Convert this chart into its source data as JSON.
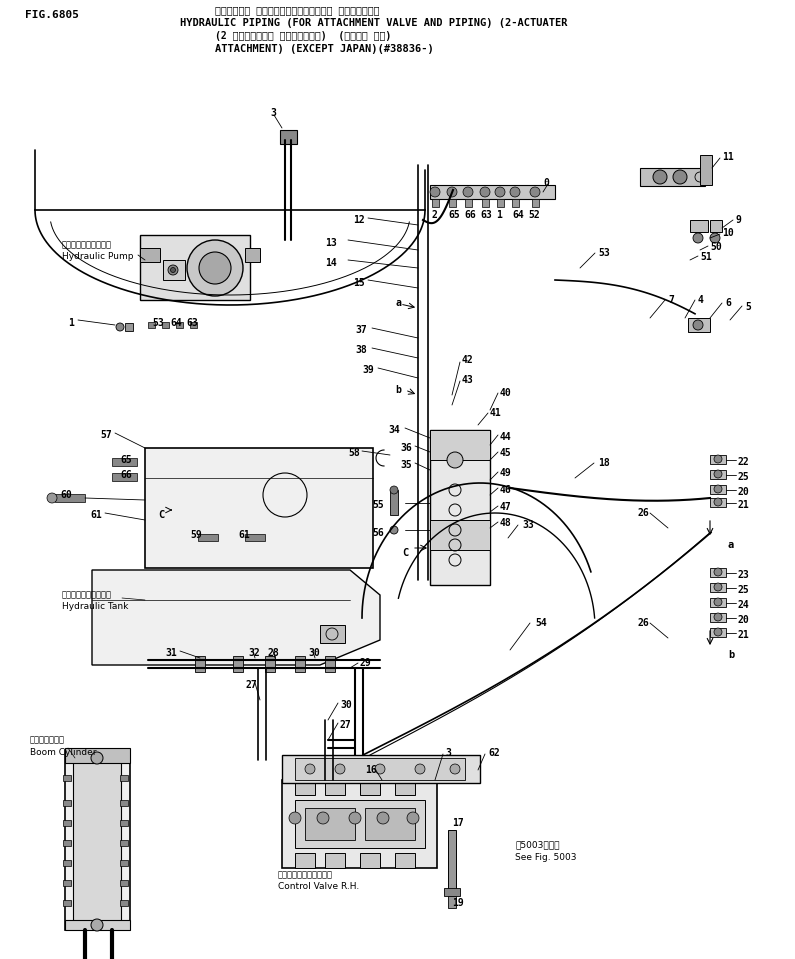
{
  "fig_number": "FIG.6805",
  "title_line1": "ハイドロック パイピング（アタッチメント バルブ・配管）",
  "title_line2": "HYDRAULIC PIPING (FOR ATTACHMENT VALVE AND PIPING) (2-ACTUATER",
  "title_line3": "(2 アクチュエータ アタッチメント)  (カイガイ ヨウ)",
  "title_line4": "ATTACHMENT) (EXCEPT JAPAN)(#38836-)",
  "background_color": "#ffffff",
  "pump_label_jp": "ハイドロリックボンプ",
  "pump_label_en": "Hydraulic Pump",
  "tank_label_jp": "ハイドロリックタンク",
  "tank_label_en": "Hydraulic Tank",
  "boom_label_jp": "ブームシリンダ",
  "boom_label_en": "Boom Cylinder",
  "valve_label_jp": "コントロールバルブ右側",
  "valve_label_en": "Control Valve R.H.",
  "see_fig_jp": "第5003図参照",
  "see_fig_en": "See Fig. 5003"
}
